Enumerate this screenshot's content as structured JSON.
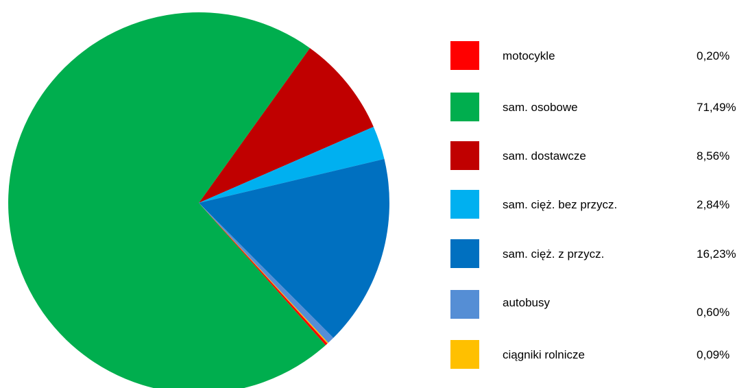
{
  "chart_data": {
    "type": "pie",
    "slices": [
      {
        "label": "motocykle",
        "value": 0.2,
        "display": "0,20%",
        "color": "#FF0000"
      },
      {
        "label": "sam. osobowe",
        "value": 71.49,
        "display": "71,49%",
        "color": "#00AE4E"
      },
      {
        "label": "sam. dostawcze",
        "value": 8.56,
        "display": "8,56%",
        "color": "#C00000"
      },
      {
        "label": "sam. cięż. bez przycz.",
        "value": 2.84,
        "display": "2,84%",
        "color": "#00B0F0"
      },
      {
        "label": "sam. cięż. z przycz.",
        "value": 16.23,
        "display": "16,23%",
        "color": "#0070C0"
      },
      {
        "label": "autobusy",
        "value": 0.6,
        "display": "0,60%",
        "color": "#558ED5"
      },
      {
        "label": "ciągniki rolnicze",
        "value": 0.09,
        "display": "0,09%",
        "color": "#FFC000"
      }
    ],
    "legend_position": "right"
  }
}
